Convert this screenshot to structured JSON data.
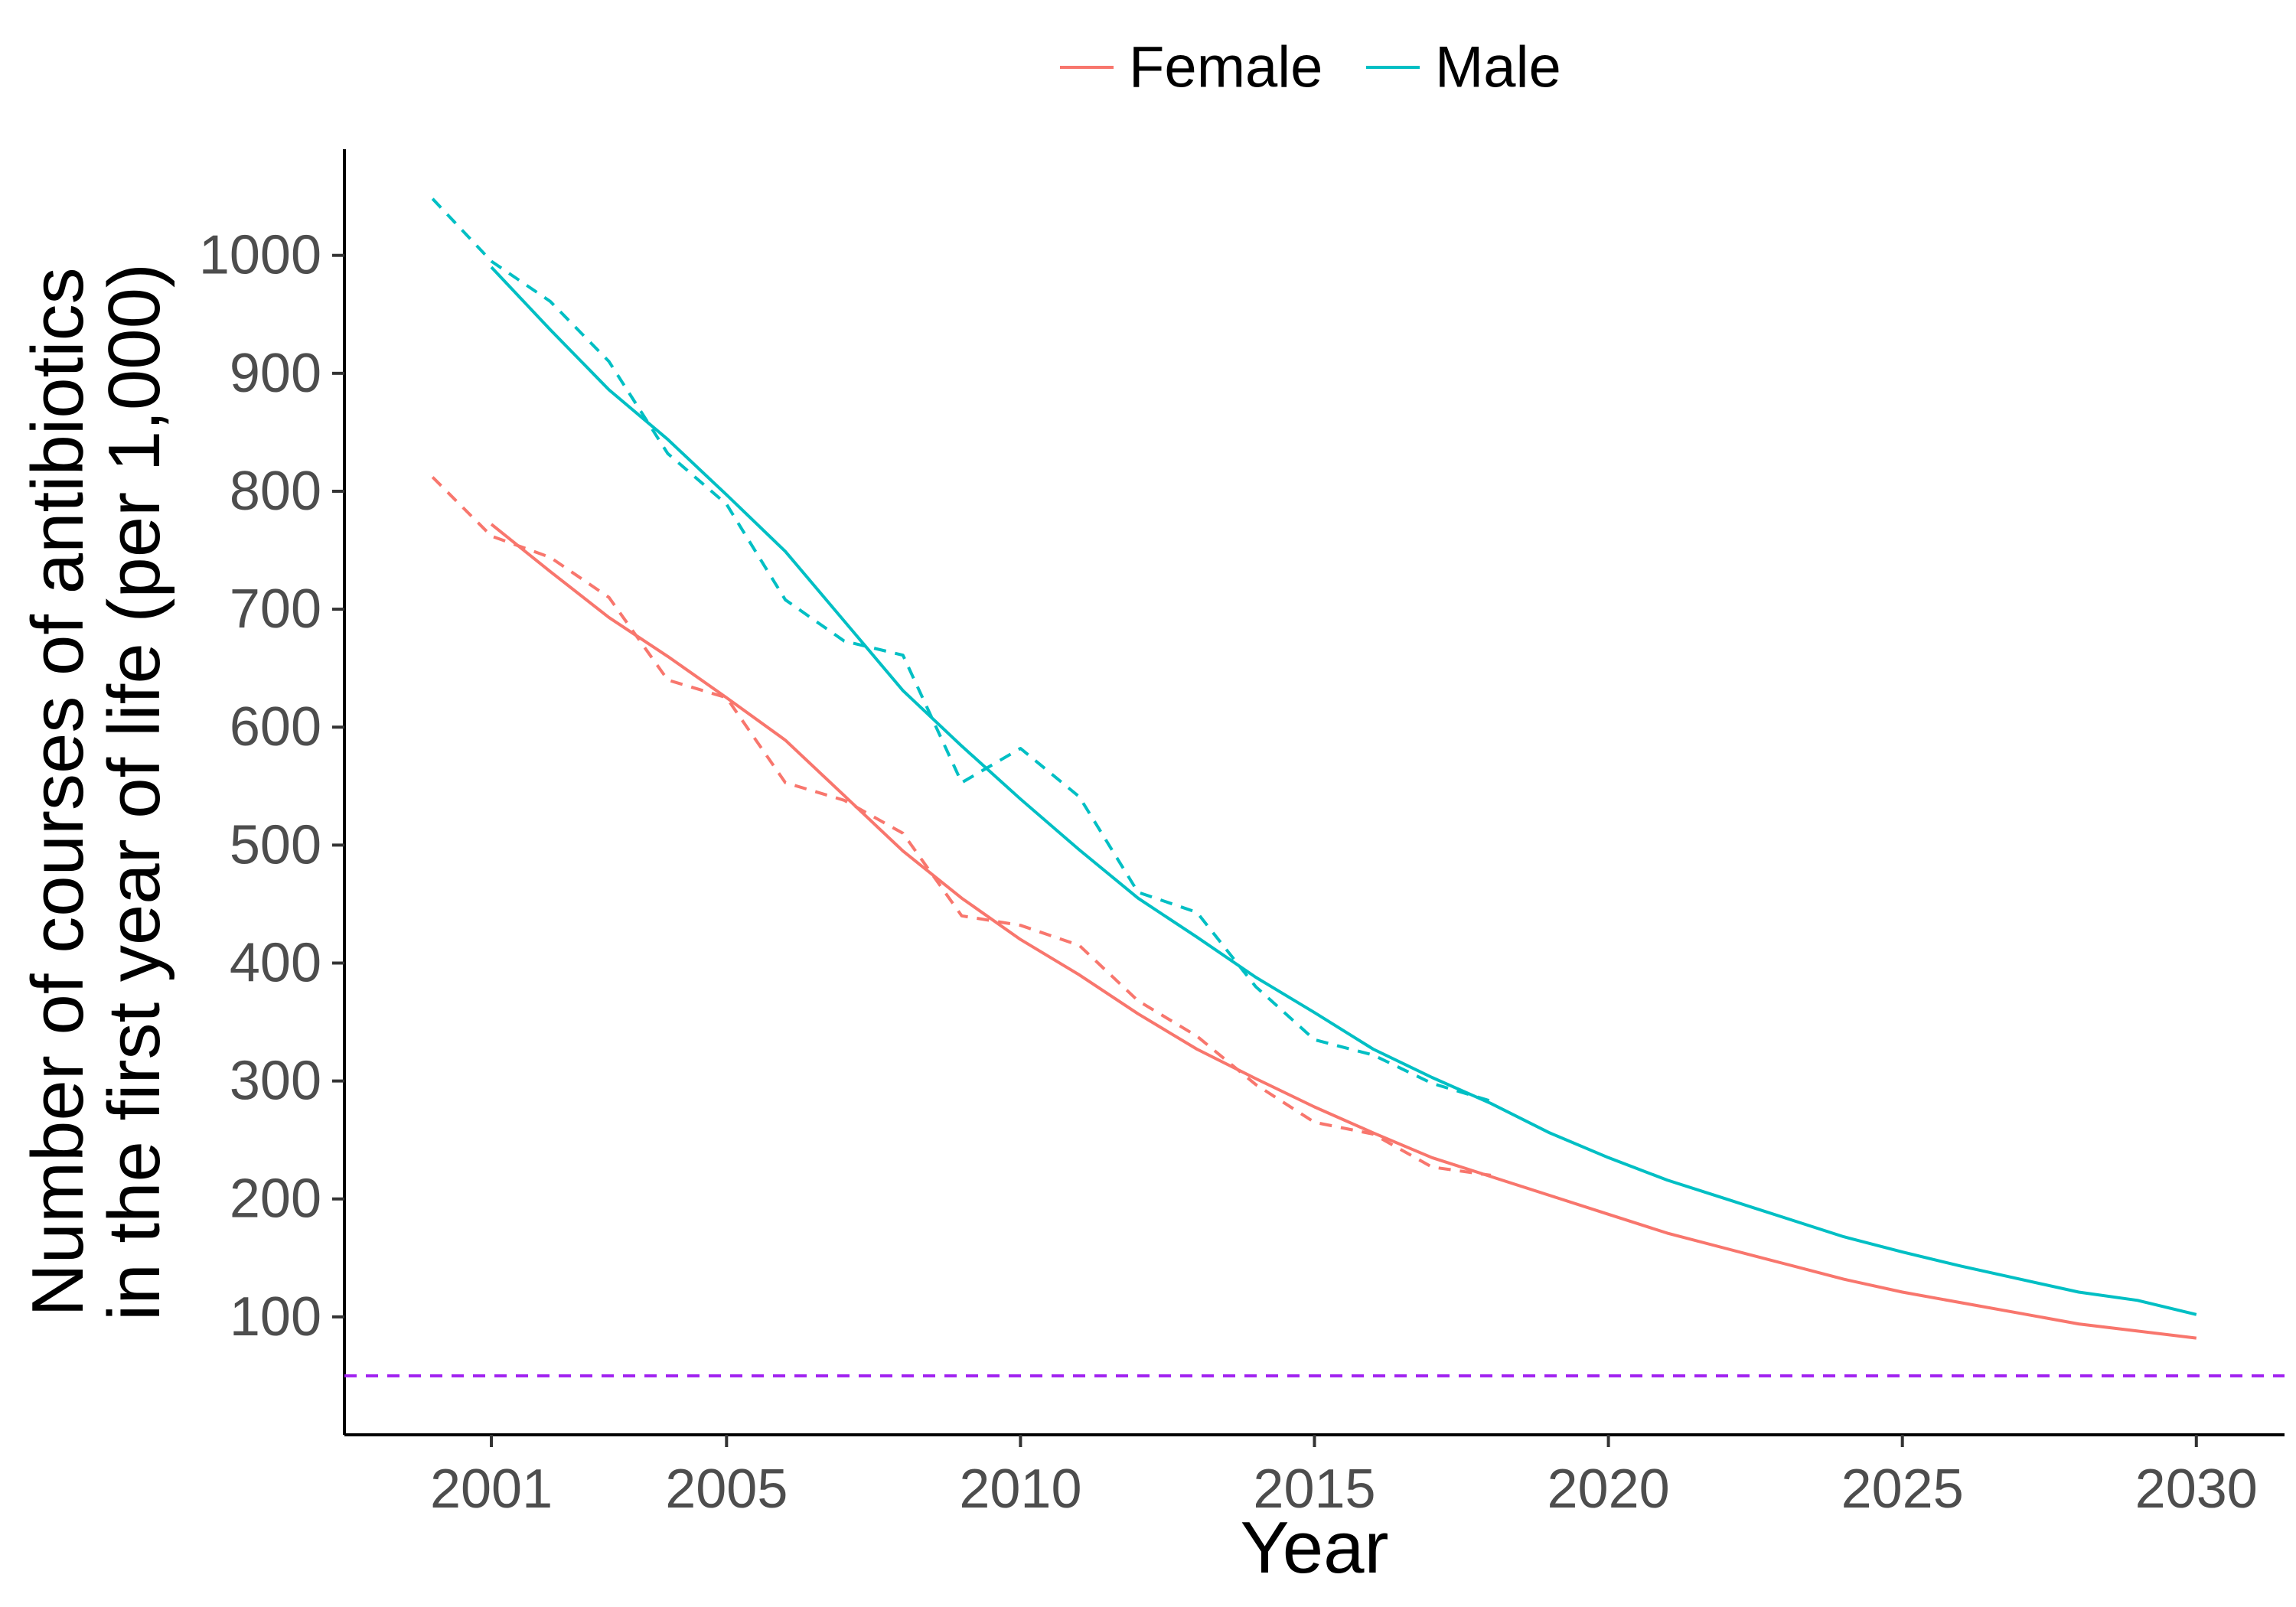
{
  "chart_data": {
    "type": "line",
    "xlabel": "Year",
    "ylabel_lines": [
      "Number of courses of antibiotics",
      "in the first year of life (per 1,000)"
    ],
    "xlim": [
      1998.5,
      2031.5
    ],
    "ylim": [
      0,
      1090
    ],
    "x_ticks": [
      2001,
      2005,
      2010,
      2015,
      2020,
      2025,
      2030
    ],
    "x_tick_labels": [
      "2001",
      "2005",
      "2010",
      "2015",
      "2020",
      "2025",
      "2030"
    ],
    "y_ticks": [
      100,
      200,
      300,
      400,
      500,
      600,
      700,
      800,
      900,
      1000
    ],
    "y_tick_labels": [
      "100",
      "200",
      "300",
      "400",
      "500",
      "600",
      "700",
      "800",
      "900",
      "1000"
    ],
    "grid": false,
    "legend": {
      "position": "top",
      "entries": [
        "Female",
        "Male"
      ]
    },
    "series": [
      {
        "name": "Female",
        "color": "#f8766d",
        "fitted": {
          "x": [
            2001,
            2002,
            2003,
            2004,
            2005,
            2006,
            2007,
            2008,
            2009,
            2010,
            2011,
            2012,
            2013,
            2014,
            2015,
            2016,
            2017,
            2018,
            2019,
            2020,
            2021,
            2022,
            2023,
            2024,
            2025,
            2026,
            2027,
            2028,
            2029,
            2030
          ],
          "y": [
            772,
            732,
            693,
            660,
            625,
            589,
            542,
            495,
            455,
            420,
            390,
            357,
            327,
            302,
            278,
            256,
            235,
            219,
            203,
            187,
            171,
            158,
            145,
            132,
            121,
            112,
            103,
            94,
            88,
            82
          ]
        },
        "observed": {
          "x": [
            2000,
            2001,
            2002,
            2003,
            2004,
            2005,
            2006,
            2007,
            2008,
            2009,
            2010,
            2011,
            2012,
            2013,
            2014,
            2015,
            2016,
            2017,
            2018
          ],
          "y": [
            812,
            762,
            744,
            710,
            640,
            625,
            553,
            538,
            510,
            440,
            432,
            415,
            368,
            338,
            297,
            265,
            255,
            227,
            220
          ]
        }
      },
      {
        "name": "Male",
        "color": "#00bfc4",
        "fitted": {
          "x": [
            2001,
            2002,
            2003,
            2004,
            2005,
            2006,
            2007,
            2008,
            2009,
            2010,
            2011,
            2012,
            2013,
            2014,
            2015,
            2016,
            2017,
            2018,
            2019,
            2020,
            2021,
            2022,
            2023,
            2024,
            2025,
            2026,
            2027,
            2028,
            2029,
            2030
          ],
          "y": [
            990,
            937,
            886,
            844,
            797,
            749,
            690,
            631,
            584,
            539,
            496,
            455,
            422,
            388,
            358,
            327,
            303,
            281,
            256,
            235,
            216,
            200,
            184,
            168,
            155,
            143,
            132,
            121,
            114,
            102
          ]
        },
        "observed": {
          "x": [
            2000,
            2001,
            2002,
            2003,
            2004,
            2005,
            2006,
            2007,
            2008,
            2009,
            2010,
            2011,
            2012,
            2013,
            2014,
            2015,
            2016,
            2017,
            2018
          ],
          "y": [
            1048,
            995,
            961,
            910,
            832,
            789,
            708,
            673,
            661,
            553,
            582,
            541,
            460,
            443,
            380,
            335,
            322,
            298,
            283
          ]
        }
      }
    ],
    "reference_line": {
      "y": 50,
      "color": "#a020f0",
      "style": "dashed"
    }
  }
}
